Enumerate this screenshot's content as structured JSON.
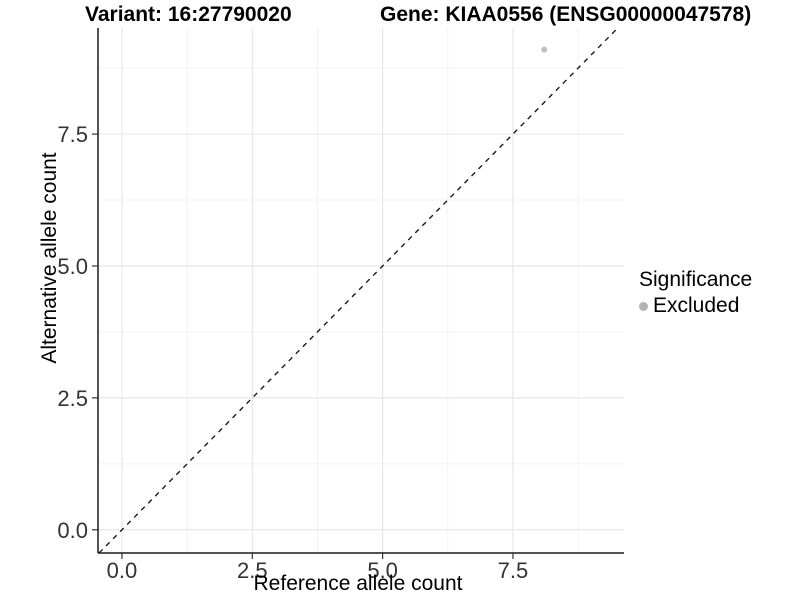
{
  "chart_data": {
    "type": "scatter",
    "title_variant": "Variant: 16:27790020",
    "title_gene": "Gene: KIAA0556 (ENSG00000047578)",
    "xlabel": "Reference allele count",
    "ylabel": "Alternative allele count",
    "xlim": [
      -0.46,
      9.63
    ],
    "ylim": [
      -0.44,
      9.51
    ],
    "x_ticks": {
      "values": [
        0,
        2.5,
        5,
        7.5
      ],
      "labels": [
        "0.0",
        "2.5",
        "5.0",
        "7.5"
      ]
    },
    "y_ticks": {
      "values": [
        0,
        2.5,
        5,
        7.5
      ],
      "labels": [
        "0.0",
        "2.5",
        "5.0",
        "7.5"
      ]
    },
    "x_minor_ticks": [
      1.25,
      3.75,
      6.25,
      8.75
    ],
    "y_minor_ticks": [
      1.25,
      3.75,
      6.25,
      8.75
    ],
    "grid": "major and minor gridlines on white panel",
    "identity_line": {
      "slope": 1,
      "intercept": 0,
      "style": "dashed",
      "color": "#1a1a1a"
    },
    "series": [
      {
        "name": "Excluded",
        "color": "#c0c0c0",
        "points": [
          [
            8.1,
            9.1
          ]
        ]
      }
    ],
    "legend": {
      "title": "Significance",
      "position": "right",
      "items": [
        {
          "label": "Excluded",
          "color": "#b3b3b3"
        }
      ]
    },
    "colors": {
      "grid_major": "#e7e7e7",
      "grid_minor": "#f2f2f2",
      "axis_line": "#1a1a1a",
      "tick_label": "#333333"
    }
  }
}
